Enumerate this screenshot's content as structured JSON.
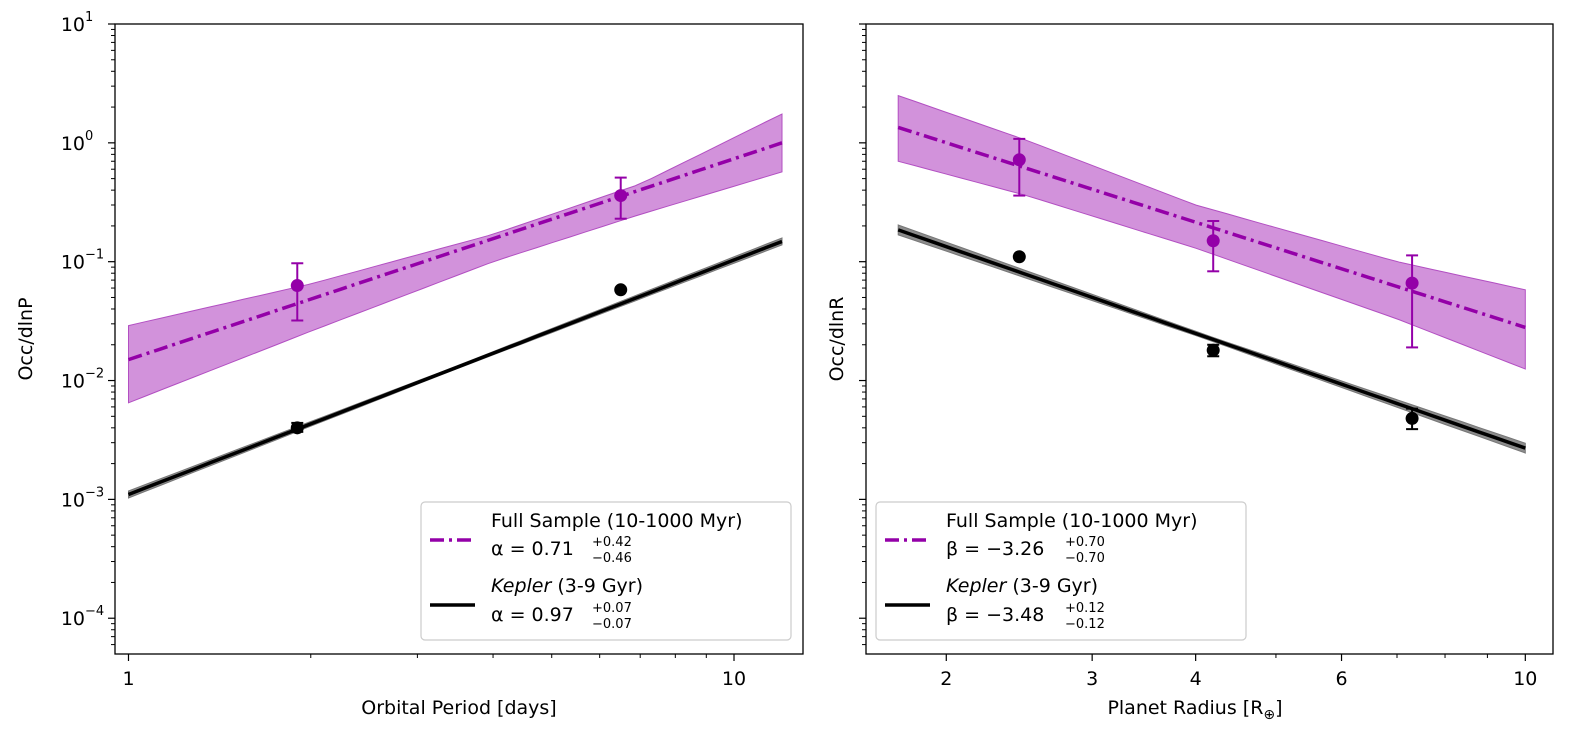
{
  "chart_data": [
    {
      "type": "line",
      "panel": "left",
      "xlabel": "Orbital Period [days]",
      "ylabel": "Occ/dlnP",
      "xscale": "log",
      "yscale": "log",
      "xlim": [
        0.95,
        13.0
      ],
      "ylim": [
        5e-05,
        10
      ],
      "xticks": [
        {
          "v": 1,
          "label": "1"
        },
        {
          "v": 10,
          "label": "10"
        }
      ],
      "yticks": [
        {
          "v": 0.0001,
          "base": "10",
          "exp": "−4"
        },
        {
          "v": 0.001,
          "base": "10",
          "exp": "−3"
        },
        {
          "v": 0.01,
          "base": "10",
          "exp": "−2"
        },
        {
          "v": 0.1,
          "base": "10",
          "exp": "−1"
        },
        {
          "v": 1,
          "base": "10",
          "exp": "0"
        },
        {
          "v": 10,
          "base": "10",
          "exp": "1"
        }
      ],
      "series": [
        {
          "name": "Full Sample (10-1000 Myr)",
          "color": "#9400a8",
          "band_color": "#c777d2",
          "style": "dashdot",
          "line": {
            "x": [
              1,
              12
            ],
            "y": [
              0.015,
              1.0
            ]
          },
          "band_upper": {
            "x": [
              1,
              2,
              4,
              7,
              12
            ],
            "y": [
              0.029,
              0.065,
              0.17,
              0.45,
              1.75
            ]
          },
          "band_lower": {
            "x": [
              1,
              2,
              4,
              7,
              12
            ],
            "y": [
              0.0065,
              0.026,
              0.1,
              0.25,
              0.57
            ]
          },
          "points": [
            {
              "x": 1.9,
              "y": 0.063,
              "ylo": 0.032,
              "yhi": 0.097
            },
            {
              "x": 6.5,
              "y": 0.36,
              "ylo": 0.23,
              "yhi": 0.51
            }
          ],
          "legend_param": "α = 0.71",
          "legend_sup": "+0.42",
          "legend_sub": "−0.46"
        },
        {
          "name": "Kepler (3-9 Gyr)",
          "name_italic": "Kepler",
          "name_rest": " (3-9 Gyr)",
          "color": "#000000",
          "band_color": "#808080",
          "style": "solid",
          "line": {
            "x": [
              1,
              12
            ],
            "y": [
              0.0011,
              0.148
            ]
          },
          "band_width": 0.07,
          "points": [
            {
              "x": 1.9,
              "y": 0.004,
              "ylo": 0.0037,
              "yhi": 0.0044
            },
            {
              "x": 6.5,
              "y": 0.058,
              "ylo": 0.058,
              "yhi": 0.058
            }
          ],
          "legend_param": "α = 0.97",
          "legend_sup": "+0.07",
          "legend_sub": "−0.07"
        }
      ],
      "legend_location": "lower-right"
    },
    {
      "type": "line",
      "panel": "right",
      "xlabel": "Planet Radius [R",
      "xlabel_sub": "⊕",
      "xlabel_close": "]",
      "ylabel": "Occ/dlnR",
      "xscale": "log",
      "yscale": "log",
      "xlim": [
        1.6,
        10.8
      ],
      "ylim": [
        5e-05,
        10
      ],
      "xticks": [
        {
          "v": 2,
          "label": "2"
        },
        {
          "v": 3,
          "label": "3"
        },
        {
          "v": 4,
          "label": "4"
        },
        {
          "v": 6,
          "label": "6"
        },
        {
          "v": 10,
          "label": "10"
        }
      ],
      "series": [
        {
          "name": "Full Sample (10-1000 Myr)",
          "color": "#9400a8",
          "band_color": "#c777d2",
          "style": "dashdot",
          "line": {
            "x": [
              1.75,
              10
            ],
            "y": [
              1.35,
              0.028
            ]
          },
          "band_upper": {
            "x": [
              1.75,
              2.5,
              4,
              7,
              10
            ],
            "y": [
              2.5,
              1.05,
              0.3,
              0.1,
              0.058
            ]
          },
          "band_lower": {
            "x": [
              1.75,
              2.5,
              4,
              7,
              10
            ],
            "y": [
              0.7,
              0.36,
              0.13,
              0.033,
              0.0125
            ]
          },
          "points": [
            {
              "x": 2.45,
              "y": 0.72,
              "ylo": 0.36,
              "yhi": 1.08
            },
            {
              "x": 4.2,
              "y": 0.15,
              "ylo": 0.083,
              "yhi": 0.22
            },
            {
              "x": 7.3,
              "y": 0.066,
              "ylo": 0.019,
              "yhi": 0.113
            }
          ],
          "legend_param": "β = −3.26",
          "legend_sup": "+0.70",
          "legend_sub": "−0.70"
        },
        {
          "name": "Kepler (3-9 Gyr)",
          "name_italic": "Kepler",
          "name_rest": " (3-9 Gyr)",
          "color": "#000000",
          "band_color": "#808080",
          "style": "solid",
          "line": {
            "x": [
              1.75,
              10
            ],
            "y": [
              0.185,
              0.0027
            ]
          },
          "band_width": 0.1,
          "points": [
            {
              "x": 2.45,
              "y": 0.11,
              "ylo": 0.11,
              "yhi": 0.11
            },
            {
              "x": 4.2,
              "y": 0.018,
              "ylo": 0.016,
              "yhi": 0.02
            },
            {
              "x": 7.3,
              "y": 0.0048,
              "ylo": 0.0039,
              "yhi": 0.0058
            }
          ],
          "legend_param": "β = −3.48",
          "legend_sup": "+0.12",
          "legend_sub": "−0.12"
        }
      ],
      "legend_location": "lower-right"
    }
  ]
}
